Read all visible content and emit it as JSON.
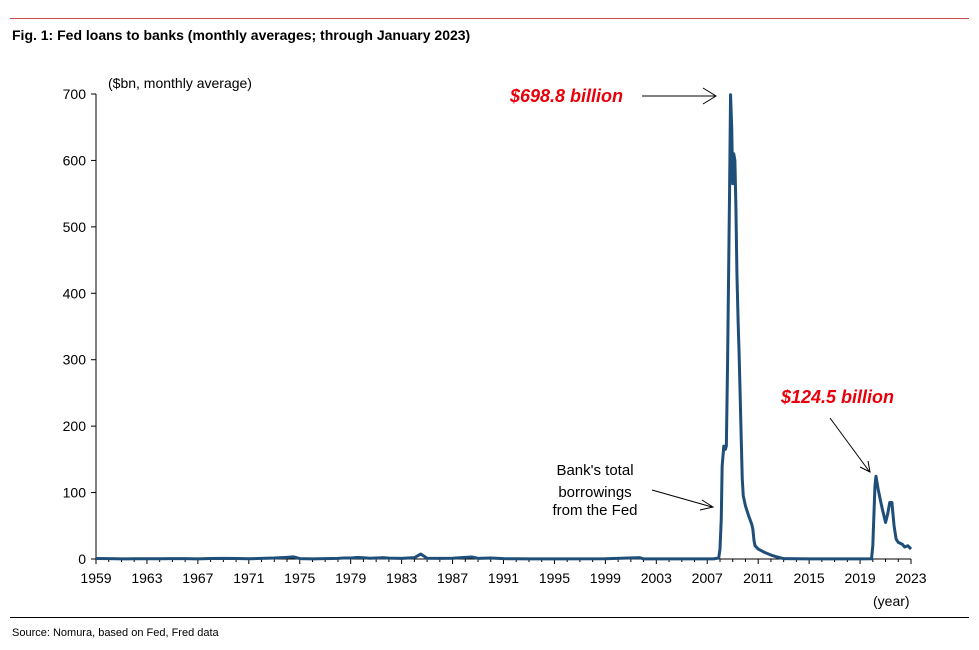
{
  "figure": {
    "title": "Fig. 1: Fed loans to banks (monthly averages; through January 2023)",
    "source": "Source: Nomura, based on Fed, Fred data"
  },
  "chart_data": {
    "type": "line",
    "title": "Fig. 1: Fed loans to banks (monthly averages; through January 2023)",
    "ylabel": "($bn, monthly average)",
    "xlabel": "(year)",
    "xlim": [
      1959,
      2023
    ],
    "ylim": [
      0,
      700
    ],
    "x_ticks": [
      "1959",
      "1963",
      "1967",
      "1971",
      "1975",
      "1979",
      "1983",
      "1987",
      "1991",
      "1995",
      "1999",
      "2003",
      "2007",
      "2011",
      "2015",
      "2019",
      "2023"
    ],
    "y_ticks": [
      "0",
      "100",
      "200",
      "300",
      "400",
      "500",
      "600",
      "700"
    ],
    "grid": false,
    "line_color": "#1f4e79",
    "annotation_color": "#e8000b",
    "series": [
      {
        "name": "Fed loans to banks",
        "points": [
          [
            1959.0,
            0.8
          ],
          [
            1960.0,
            0.5
          ],
          [
            1961.0,
            0.1
          ],
          [
            1962.0,
            0.3
          ],
          [
            1963.0,
            0.3
          ],
          [
            1964.0,
            0.3
          ],
          [
            1965.0,
            0.5
          ],
          [
            1966.0,
            0.6
          ],
          [
            1967.0,
            0.2
          ],
          [
            1968.0,
            0.7
          ],
          [
            1969.0,
            1.0
          ],
          [
            1970.0,
            0.8
          ],
          [
            1971.0,
            0.3
          ],
          [
            1972.0,
            1.0
          ],
          [
            1973.0,
            1.5
          ],
          [
            1974.0,
            2.5
          ],
          [
            1974.5,
            3.2
          ],
          [
            1975.0,
            0.6
          ],
          [
            1976.0,
            0.1
          ],
          [
            1977.0,
            0.5
          ],
          [
            1978.0,
            1.0
          ],
          [
            1978.5,
            1.6
          ],
          [
            1979.0,
            1.5
          ],
          [
            1979.5,
            2.3
          ],
          [
            1980.0,
            1.8
          ],
          [
            1980.5,
            1.2
          ],
          [
            1981.0,
            1.5
          ],
          [
            1981.5,
            2.0
          ],
          [
            1982.0,
            1.3
          ],
          [
            1983.0,
            1.0
          ],
          [
            1984.0,
            2.0
          ],
          [
            1984.5,
            7.5
          ],
          [
            1985.0,
            1.2
          ],
          [
            1986.0,
            1.0
          ],
          [
            1987.0,
            1.2
          ],
          [
            1988.0,
            2.5
          ],
          [
            1988.5,
            3.0
          ],
          [
            1989.0,
            1.0
          ],
          [
            1990.0,
            1.5
          ],
          [
            1991.0,
            0.5
          ],
          [
            1992.0,
            0.3
          ],
          [
            1993.0,
            0.1
          ],
          [
            1995.0,
            0.2
          ],
          [
            1999.0,
            0.3
          ],
          [
            2001.7,
            2.0
          ],
          [
            2002.0,
            0.1
          ],
          [
            2003.0,
            0.1
          ],
          [
            2007.5,
            0.2
          ],
          [
            2007.9,
            1.5
          ],
          [
            2008.0,
            15
          ],
          [
            2008.1,
            60
          ],
          [
            2008.17,
            140
          ],
          [
            2008.3,
            170
          ],
          [
            2008.42,
            165
          ],
          [
            2008.5,
            170
          ],
          [
            2008.6,
            300
          ],
          [
            2008.75,
            550
          ],
          [
            2008.83,
            698.8
          ],
          [
            2008.92,
            650
          ],
          [
            2009.0,
            565
          ],
          [
            2009.08,
            610
          ],
          [
            2009.17,
            600
          ],
          [
            2009.25,
            530
          ],
          [
            2009.33,
            430
          ],
          [
            2009.42,
            360
          ],
          [
            2009.5,
            310
          ],
          [
            2009.58,
            250
          ],
          [
            2009.67,
            180
          ],
          [
            2009.75,
            120
          ],
          [
            2009.83,
            95
          ],
          [
            2010.0,
            80
          ],
          [
            2010.25,
            65
          ],
          [
            2010.5,
            52
          ],
          [
            2010.58,
            45
          ],
          [
            2010.67,
            28
          ],
          [
            2010.75,
            20
          ],
          [
            2011.0,
            15
          ],
          [
            2011.5,
            10
          ],
          [
            2012.0,
            6
          ],
          [
            2012.5,
            3
          ],
          [
            2013.0,
            0.5
          ],
          [
            2015.0,
            0.1
          ],
          [
            2019.0,
            0.1
          ],
          [
            2019.9,
            0.3
          ],
          [
            2020.0,
            20
          ],
          [
            2020.17,
            110
          ],
          [
            2020.25,
            124.5
          ],
          [
            2020.42,
            105
          ],
          [
            2020.58,
            90
          ],
          [
            2020.75,
            75
          ],
          [
            2021.0,
            55
          ],
          [
            2021.17,
            68
          ],
          [
            2021.33,
            85
          ],
          [
            2021.5,
            85
          ],
          [
            2021.67,
            50
          ],
          [
            2021.83,
            30
          ],
          [
            2022.0,
            25
          ],
          [
            2022.33,
            22
          ],
          [
            2022.5,
            18
          ],
          [
            2022.75,
            20
          ],
          [
            2023.0,
            15
          ]
        ]
      }
    ],
    "annotations": [
      {
        "text": "$698.8 billion",
        "x": 2008.83,
        "y": 698.8,
        "style": "red-bold-italic"
      },
      {
        "text": "$124.5 billion",
        "x": 2020.25,
        "y": 124.5,
        "style": "red-bold-italic"
      },
      {
        "lines": [
          "Bank's total",
          "borrowings",
          "from the Fed"
        ],
        "x": 2008.0,
        "y": 80,
        "style": "black"
      }
    ]
  }
}
